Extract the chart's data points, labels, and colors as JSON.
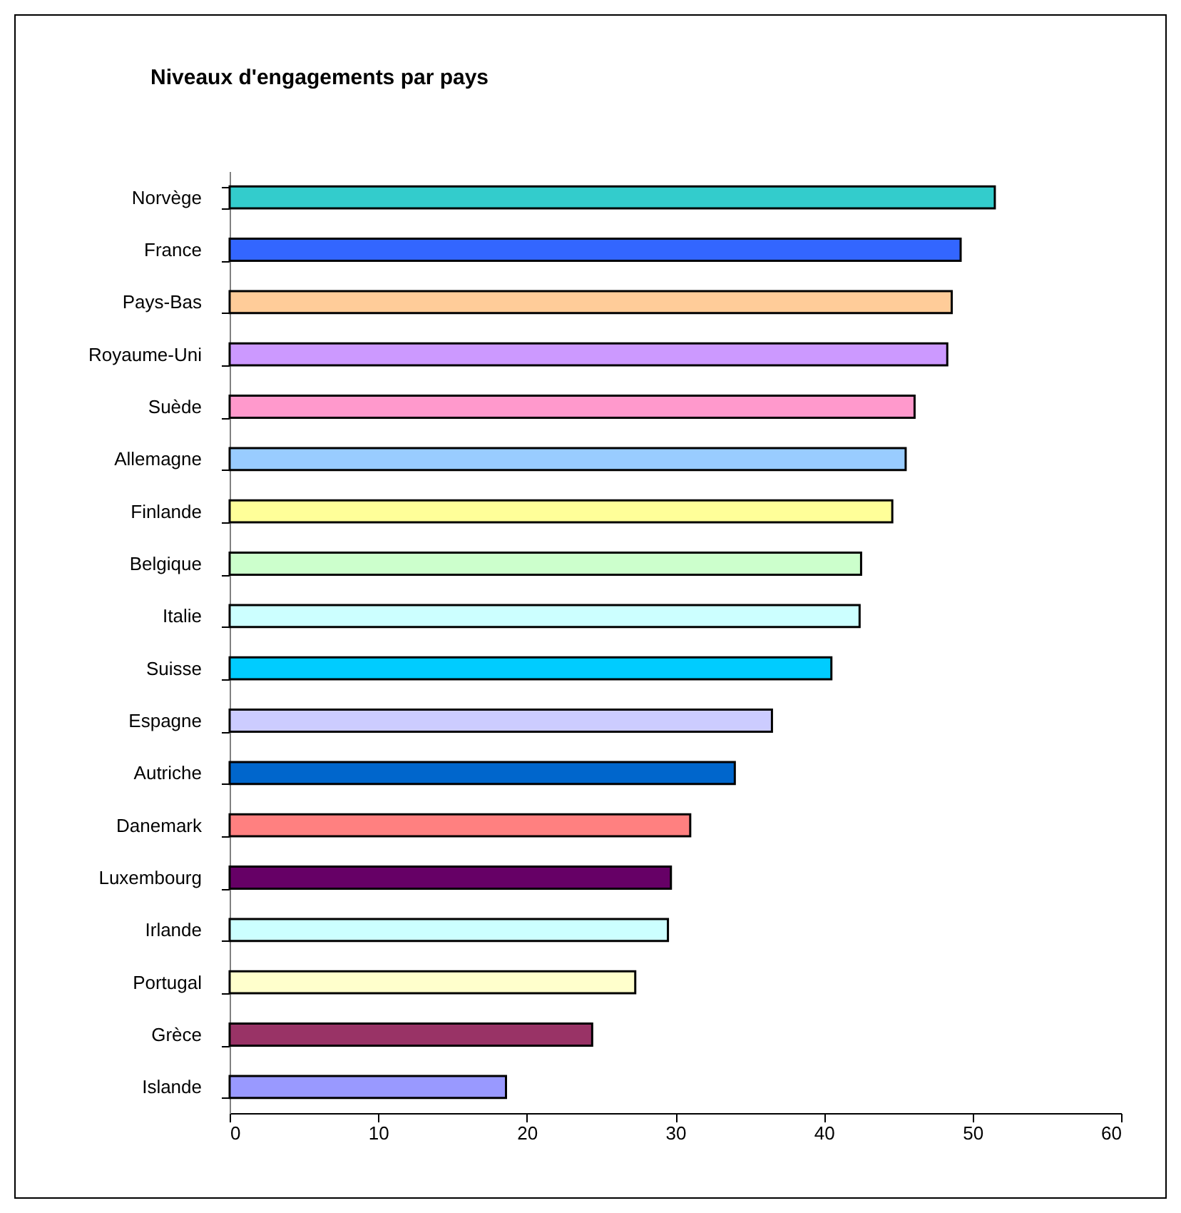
{
  "chart_data": {
    "type": "bar",
    "orientation": "horizontal",
    "title": "Niveaux d'engagements par pays",
    "categories": [
      "Norvège",
      "France",
      "Pays-Bas",
      "Royaume-Uni",
      "Suède",
      "Allemagne",
      "Finlande",
      "Belgique",
      "Italie",
      "Suisse",
      "Espagne",
      "Autriche",
      "Danemark",
      "Luxembourg",
      "Irlande",
      "Portugal",
      "Grèce",
      "Islande"
    ],
    "values": [
      51.5,
      49.2,
      48.6,
      48.3,
      46.1,
      45.5,
      44.6,
      42.5,
      42.4,
      40.5,
      36.5,
      34.0,
      31.0,
      29.7,
      29.5,
      27.3,
      24.4,
      18.6
    ],
    "colors": [
      "#33cccc",
      "#3366ff",
      "#ffcc99",
      "#cc99ff",
      "#ff99cc",
      "#99ccff",
      "#ffff99",
      "#ccffcc",
      "#ccffff",
      "#00ccff",
      "#ccccff",
      "#0066cc",
      "#ff8080",
      "#660066",
      "#ccffff",
      "#ffffcc",
      "#993366",
      "#9999ff"
    ],
    "xlim": [
      0,
      60
    ],
    "xticks": [
      0,
      10,
      20,
      30,
      40,
      50,
      60
    ],
    "grid": false,
    "legend": false
  }
}
